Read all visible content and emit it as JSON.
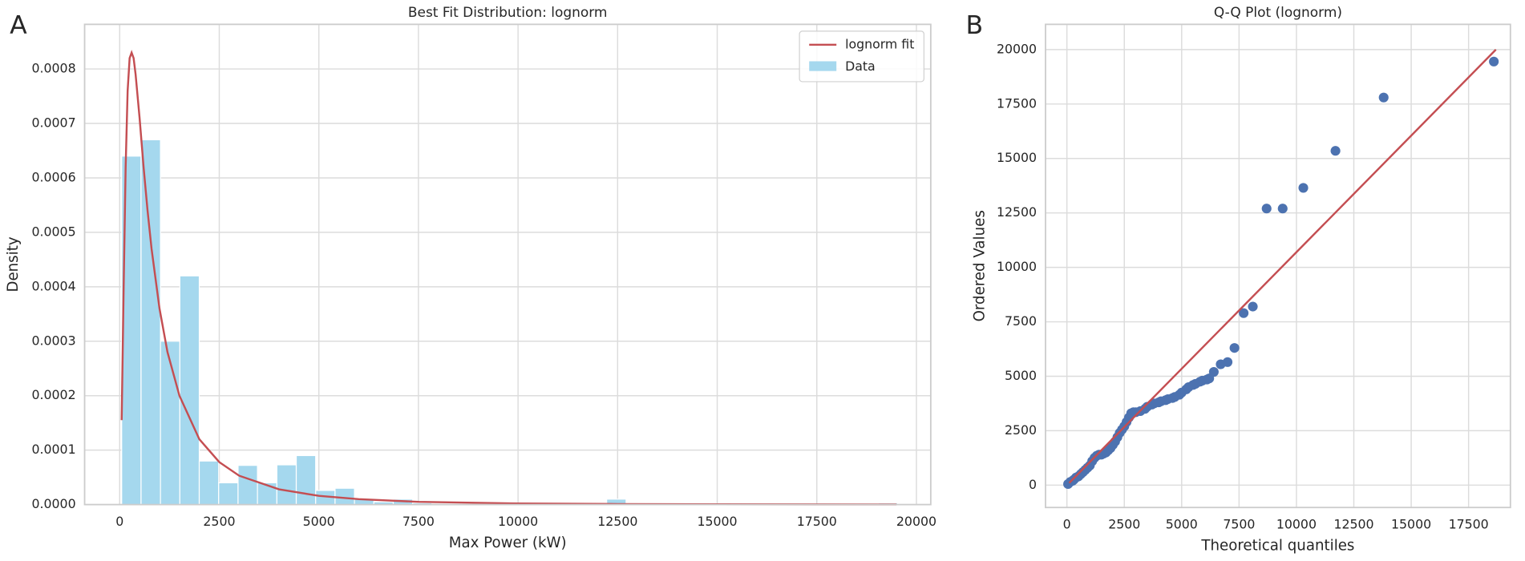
{
  "chart_data": [
    {
      "type": "histogram",
      "panel_label": "A",
      "title": "Best Fit Distribution: lognorm",
      "xlabel": "Max Power (kW)",
      "ylabel": "Density",
      "name": "Data",
      "color": "#a5d8ee",
      "bins": [
        50,
        537,
        1024,
        1511,
        1998,
        2485,
        2972,
        3459,
        3946,
        4433,
        4920,
        5407,
        5894,
        6381,
        6868,
        7355,
        7842,
        8329,
        8816,
        9303,
        9790,
        10277,
        10764,
        11251,
        11738,
        12225,
        12712,
        13199,
        13686,
        14173,
        14660,
        15147,
        15634,
        16121,
        16608,
        17095,
        17582,
        18069,
        18556,
        19043,
        19530
      ],
      "values": [
        0.00064,
        0.00067,
        0.0003,
        0.00042,
        8e-05,
        4e-05,
        7.2e-05,
        4e-05,
        7.3e-05,
        9e-05,
        2.6e-05,
        3e-05,
        1e-05,
        5e-06,
        1e-05,
        3e-06,
        2e-06,
        0,
        0,
        0,
        0,
        0,
        0,
        0,
        0,
        1e-05,
        0,
        2e-06,
        0,
        0,
        0,
        3e-06,
        0,
        0,
        0,
        0,
        2e-06,
        0,
        0,
        3e-06
      ],
      "series": [
        {
          "name": "lognorm fit",
          "color": "#c44e52",
          "x": [
            50,
            100,
            150,
            200,
            250,
            300,
            350,
            400,
            500,
            600,
            700,
            800,
            1000,
            1200,
            1500,
            2000,
            2500,
            3000,
            4000,
            5000,
            6000,
            7500,
            10000,
            12500,
            15000,
            17500,
            19500
          ],
          "values": [
            0.000155,
            0.0004,
            0.00062,
            0.00076,
            0.00082,
            0.00083,
            0.00082,
            0.00079,
            0.00071,
            0.00062,
            0.00054,
            0.00047,
            0.00036,
            0.00028,
            0.0002,
            0.00012,
            7.8e-05,
            5.3e-05,
            2.8e-05,
            1.6e-05,
            1e-05,
            5e-06,
            2e-06,
            1e-06,
            5e-07,
            3e-07,
            2e-07
          ]
        }
      ],
      "xlim": [
        -880,
        20360
      ],
      "ylim": [
        0,
        0.000882
      ],
      "xticks": [
        0,
        2500,
        5000,
        7500,
        10000,
        12500,
        15000,
        17500,
        20000
      ],
      "yticks": [
        {
          "value": 0,
          "label": "0.0000"
        },
        {
          "value": 0.0001,
          "label": "0.0001"
        },
        {
          "value": 0.0002,
          "label": "0.0002"
        },
        {
          "value": 0.0003,
          "label": "0.0003"
        },
        {
          "value": 0.0004,
          "label": "0.0004"
        },
        {
          "value": 0.0005,
          "label": "0.0005"
        },
        {
          "value": 0.0006,
          "label": "0.0006"
        },
        {
          "value": 0.0007,
          "label": "0.0007"
        },
        {
          "value": 0.0008,
          "label": "0.0008"
        }
      ],
      "grid": true,
      "legend": "upper right"
    },
    {
      "type": "scatter",
      "panel_label": "B",
      "title": "Q-Q Plot (lognorm)",
      "xlabel": "Theoretical quantiles",
      "ylabel": "Ordered Values",
      "color": "#4c72b0",
      "x": [
        50,
        150,
        250,
        300,
        400,
        500,
        600,
        700,
        800,
        900,
        1000,
        1100,
        1200,
        1300,
        1400,
        1500,
        1600,
        1700,
        1800,
        1900,
        2000,
        2100,
        2200,
        2300,
        2400,
        2500,
        2600,
        2700,
        2800,
        2900,
        3000,
        3200,
        3400,
        3500,
        3700,
        3800,
        4000,
        4100,
        4300,
        4400,
        4600,
        4700,
        4900,
        5000,
        5200,
        5300,
        5500,
        5600,
        5800,
        5900,
        6100,
        6200,
        6400,
        6700,
        7000,
        7300,
        7700,
        8100,
        8700,
        9400,
        10300,
        11700,
        13800,
        18600
      ],
      "values": [
        50,
        150,
        200,
        250,
        350,
        400,
        500,
        600,
        700,
        800,
        900,
        1100,
        1250,
        1350,
        1400,
        1400,
        1450,
        1500,
        1600,
        1700,
        1850,
        2000,
        2200,
        2400,
        2550,
        2700,
        2900,
        3100,
        3300,
        3350,
        3350,
        3400,
        3500,
        3600,
        3700,
        3750,
        3800,
        3850,
        3900,
        3950,
        4000,
        4050,
        4150,
        4250,
        4400,
        4500,
        4600,
        4650,
        4750,
        4800,
        4850,
        4900,
        5200,
        5550,
        5650,
        6300,
        7900,
        8200,
        12700,
        12700,
        13650,
        15350,
        17800,
        19450
      ],
      "fit_line": {
        "color": "#c44e52",
        "x": [
          100,
          18690
        ],
        "values": [
          100,
          20000
        ]
      },
      "xlim": [
        -932,
        19322
      ],
      "ylim": [
        -1027,
        21160
      ],
      "xticks": [
        0,
        2500,
        5000,
        7500,
        10000,
        12500,
        15000,
        17500
      ],
      "yticks": [
        0,
        2500,
        5000,
        7500,
        10000,
        12500,
        15000,
        17500,
        20000
      ],
      "grid": true
    }
  ]
}
